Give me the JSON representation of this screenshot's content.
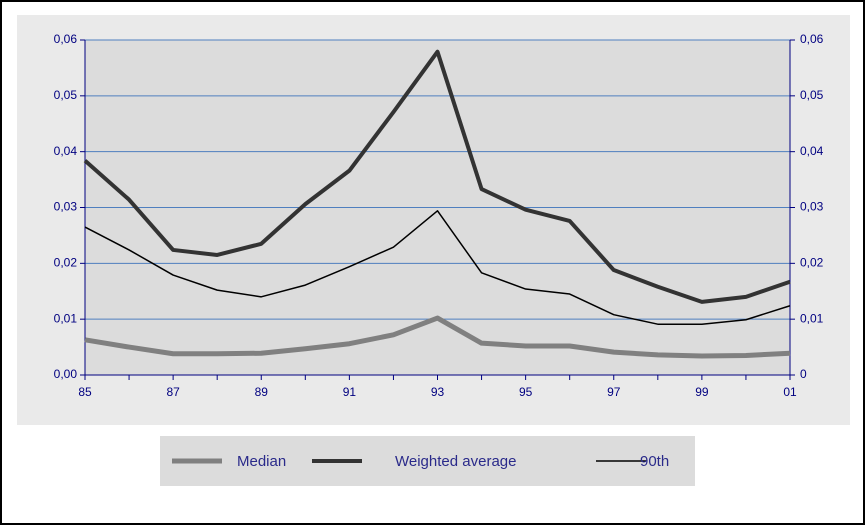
{
  "chart_data": {
    "type": "line",
    "categories": [
      "85",
      null,
      "87",
      null,
      "89",
      null,
      "91",
      null,
      "93",
      null,
      "95",
      null,
      "97",
      null,
      "99",
      null,
      "01"
    ],
    "series": [
      {
        "name": "Median",
        "color": "#808080",
        "width": 5,
        "values": [
          0.0063,
          0.005,
          0.0038,
          0.0038,
          0.0039,
          0.0047,
          0.0056,
          0.0072,
          0.0102,
          0.0057,
          0.0052,
          0.0052,
          0.0041,
          0.0036,
          0.0034,
          0.0035,
          0.0039
        ]
      },
      {
        "name": "Weighted average",
        "color": "#333333",
        "width": 4,
        "values": [
          0.0384,
          0.0314,
          0.0224,
          0.0215,
          0.0235,
          0.0306,
          0.0366,
          0.0471,
          0.0579,
          0.0333,
          0.0296,
          0.0276,
          0.0188,
          0.0158,
          0.0131,
          0.014,
          0.0167
        ]
      },
      {
        "name": "90th",
        "color": "#000000",
        "width": 1.5,
        "values": [
          0.0265,
          0.0224,
          0.0179,
          0.0152,
          0.014,
          0.0161,
          0.0194,
          0.0229,
          0.0294,
          0.0183,
          0.0154,
          0.0145,
          0.0108,
          0.0091,
          0.0091,
          0.0099,
          0.0124
        ]
      }
    ],
    "ylim": [
      0,
      0.06
    ],
    "yticks": [
      {
        "value": 0,
        "label": "0,00"
      },
      {
        "value": 0.01,
        "label": "0,01"
      },
      {
        "value": 0.02,
        "label": "0,02"
      },
      {
        "value": 0.03,
        "label": "0,03"
      },
      {
        "value": 0.04,
        "label": "0,04"
      },
      {
        "value": 0.05,
        "label": "0,05"
      },
      {
        "value": 0.06,
        "label": "0,06"
      }
    ],
    "y2lim": [
      0,
      0.06
    ],
    "y2ticks": [
      0,
      {
        "value": 0.01,
        "label": "0,01"
      },
      {
        "value": 0.02,
        "label": "0,02"
      },
      {
        "value": 0.03,
        "label": "0,03"
      },
      {
        "value": 0.04,
        "label": "0,04"
      },
      {
        "value": 0.05,
        "label": "0,05"
      },
      {
        "value": 0.06,
        "label": "0,06"
      }
    ],
    "grid": true,
    "grid_color": "#4f7fbf",
    "legend": "bottom"
  }
}
